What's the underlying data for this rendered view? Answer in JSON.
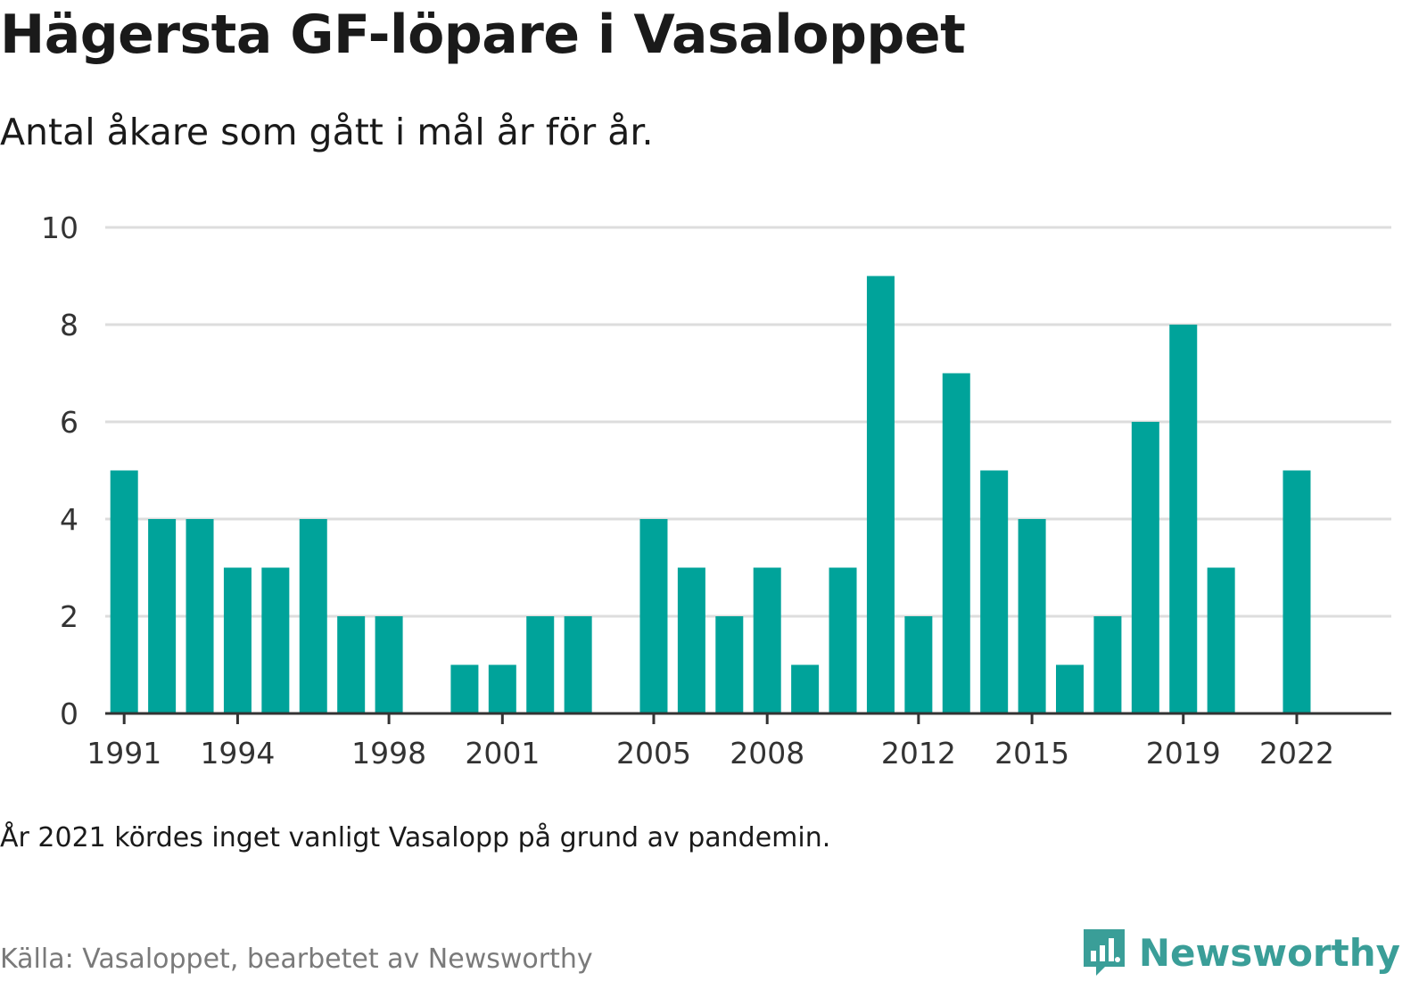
{
  "title": "Hägersta GF-löpare i Vasaloppet",
  "subtitle": "Antal åkare som gått i mål år för år.",
  "note": "År 2021 kördes inget vanligt Vasalopp på grund av pandemin.",
  "source": "Källa: Vasaloppet, bearbetet av Newsworthy",
  "brand": {
    "name": "Newsworthy",
    "icon": "newsworthy-logo-icon",
    "color": "#3a9e98"
  },
  "chart_data": {
    "type": "bar",
    "title": "Hägersta GF-löpare i Vasaloppet",
    "subtitle": "Antal åkare som gått i mål år för år.",
    "categories": [
      1991,
      1992,
      1993,
      1994,
      1995,
      1996,
      1997,
      1998,
      1999,
      2000,
      2001,
      2002,
      2003,
      2004,
      2005,
      2006,
      2007,
      2008,
      2009,
      2010,
      2011,
      2012,
      2013,
      2014,
      2015,
      2016,
      2017,
      2018,
      2019,
      2020,
      2021,
      2022
    ],
    "values": [
      5,
      4,
      4,
      3,
      3,
      4,
      2,
      2,
      0,
      1,
      1,
      2,
      2,
      0,
      4,
      3,
      2,
      3,
      1,
      3,
      9,
      2,
      7,
      5,
      4,
      1,
      2,
      6,
      8,
      3,
      0,
      5
    ],
    "x_tick_labels": [
      "1991",
      "1994",
      "1998",
      "2001",
      "2005",
      "2008",
      "2012",
      "2015",
      "2019",
      "2022"
    ],
    "y_ticks": [
      0,
      2,
      4,
      6,
      8,
      10
    ],
    "ylim": [
      0,
      10
    ],
    "xlim": [
      1990.5,
      2024.5
    ],
    "grid": true,
    "bar_color": "#00a39a",
    "grid_color": "#dddddd",
    "axis_color": "#333333"
  }
}
